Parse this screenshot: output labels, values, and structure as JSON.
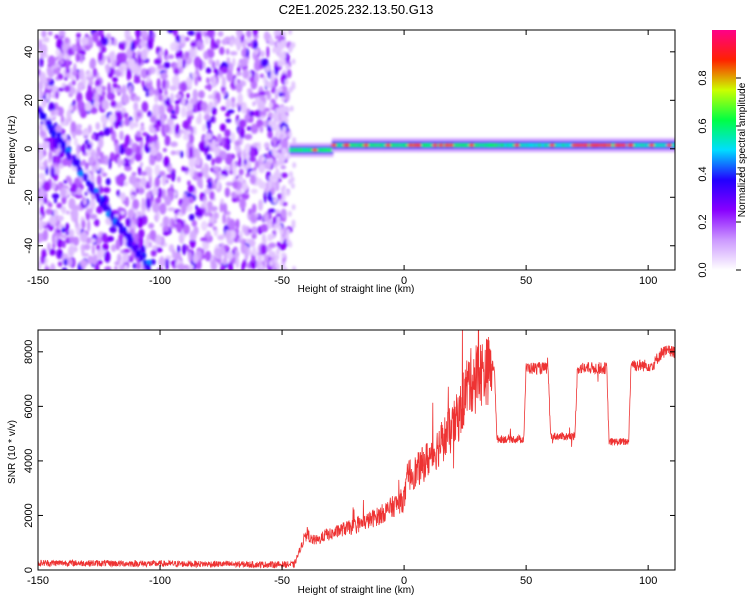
{
  "chart_data": [
    {
      "type": "heatmap",
      "title": "C2E1.2025.232.13.50.G13",
      "xlabel": "Height of straight line (km)",
      "ylabel": "Frequency (Hz)",
      "xlim": [
        -150,
        111
      ],
      "ylim": [
        -50,
        49
      ],
      "x_ticks": [
        -150,
        -100,
        -50,
        0,
        50,
        100
      ],
      "y_ticks": [
        -40,
        -20,
        0,
        20,
        40
      ],
      "colorbar": {
        "label": "Normalized spectral amplitude",
        "range": [
          0.0,
          1.0
        ],
        "ticks": [
          0.0,
          0.2,
          0.4,
          0.6,
          0.8
        ],
        "colors": [
          "#ffffff",
          "#cc99ff",
          "#8800ff",
          "#2200ff",
          "#00ddff",
          "#00ff44",
          "#ccff00",
          "#ff2200",
          "#ff0088"
        ]
      },
      "features": {
        "scatter_region_km": [
          -150,
          -47
        ],
        "diagonal_trace": {
          "start_km": -150,
          "start_hz": 16,
          "end_km": -104,
          "end_hz": -50
        },
        "band_region_km": [
          -47,
          111
        ],
        "band_center_hz": [
          0,
          3
        ]
      }
    },
    {
      "type": "line",
      "xlabel": "Height of straight line (km)",
      "ylabel": "SNR (10 * v/v)",
      "xlim": [
        -150,
        111
      ],
      "ylim": [
        0,
        8800
      ],
      "x_ticks": [
        -150,
        -100,
        -50,
        0,
        50,
        100
      ],
      "y_ticks": [
        0,
        2000,
        4000,
        6000,
        8000
      ],
      "series": [
        {
          "name": "SNR",
          "color": "#ee3333",
          "x": [
            -150,
            -140,
            -120,
            -100,
            -80,
            -60,
            -45,
            -42,
            -40,
            -38,
            -35,
            -32,
            -30,
            -25,
            -20,
            -15,
            -10,
            -5,
            0,
            2,
            5,
            8,
            10,
            13,
            16,
            20,
            23,
            26,
            30,
            34,
            37,
            38,
            40,
            45,
            49,
            50,
            55,
            59,
            60,
            65,
            70,
            71,
            75,
            80,
            83,
            84,
            88,
            92,
            93,
            95,
            100,
            102,
            104,
            106,
            111
          ],
          "values": [
            250,
            260,
            240,
            230,
            220,
            200,
            200,
            900,
            1400,
            1100,
            1100,
            1300,
            1300,
            1500,
            1600,
            1800,
            2000,
            2300,
            2600,
            3500,
            3600,
            3900,
            4100,
            4400,
            4800,
            5200,
            5800,
            6800,
            7200,
            7300,
            7500,
            4800,
            4800,
            4800,
            4800,
            7400,
            7400,
            7400,
            4900,
            4900,
            4900,
            7400,
            7400,
            7400,
            7400,
            4700,
            4700,
            4700,
            7600,
            7500,
            7500,
            7500,
            7800,
            8000,
            8000
          ]
        }
      ]
    }
  ]
}
